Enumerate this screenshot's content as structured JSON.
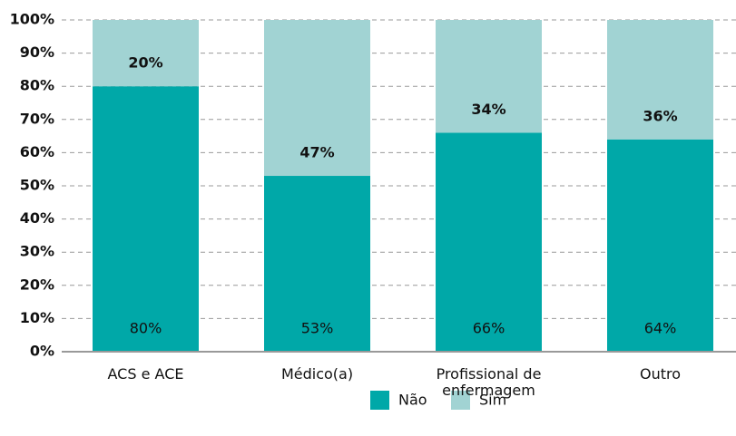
{
  "chart_data": {
    "type": "stacked_bar",
    "categories": [
      "ACS e ACE",
      "Médico(a)",
      "Profissional de enfermagem",
      "Outro"
    ],
    "series": [
      {
        "name": "Não",
        "color": "#00a8a8",
        "values": [
          80,
          53,
          66,
          64
        ],
        "value_labels": [
          "80%",
          "53%",
          "66%",
          "64%"
        ]
      },
      {
        "name": "Sim",
        "color": "#a1d3d3",
        "values": [
          20,
          47,
          34,
          36
        ],
        "value_labels": [
          "20%",
          "47%",
          "34%",
          "36%"
        ]
      }
    ],
    "ylim": [
      0,
      100
    ],
    "yticks": [
      {
        "value": 0,
        "label": "0%"
      },
      {
        "value": 10,
        "label": "10%"
      },
      {
        "value": 20,
        "label": "20%"
      },
      {
        "value": 30,
        "label": "30%"
      },
      {
        "value": 40,
        "label": "40%"
      },
      {
        "value": 50,
        "label": "50%"
      },
      {
        "value": 60,
        "label": "60%"
      },
      {
        "value": 70,
        "label": "70%"
      },
      {
        "value": 80,
        "label": "80%"
      },
      {
        "value": 90,
        "label": "90%"
      },
      {
        "value": 100,
        "label": "100%"
      }
    ],
    "grid": true,
    "legend": "bottom"
  }
}
